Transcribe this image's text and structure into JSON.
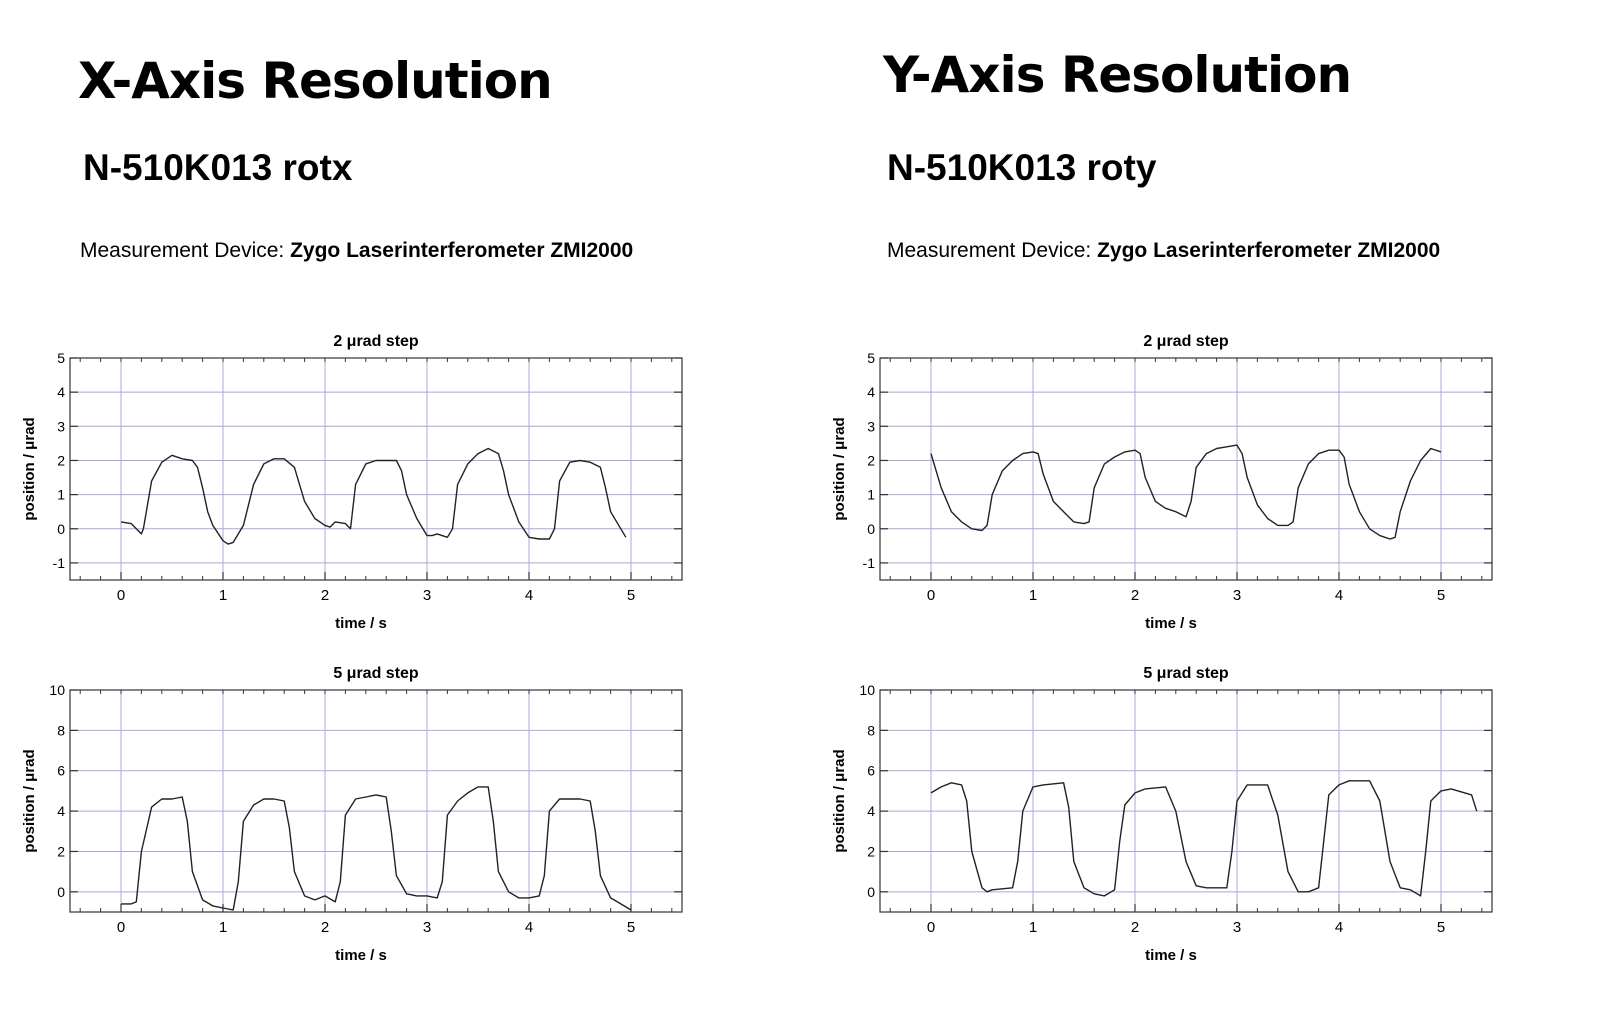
{
  "columns": [
    {
      "title": "X-Axis Resolution",
      "subtitle": "N-510K013 rotx",
      "device_label": "Measurement Device:",
      "device_name": "Zygo Laserinterferometer ZMI2000"
    },
    {
      "title": "Y-Axis Resolution",
      "subtitle": "N-510K013 roty",
      "device_label": "Measurement Device:",
      "device_name": "Zygo Laserinterferometer ZMI2000"
    }
  ],
  "colors": {
    "grid": "#a8a8d8",
    "trace": "#222222",
    "frame": "#333333"
  },
  "chart_data": [
    {
      "type": "line",
      "title": "2 μrad step",
      "xlabel": "time  / s",
      "ylabel": "position  / μrad",
      "xlim": [
        -0.5,
        5.5
      ],
      "ylim": [
        -1.5,
        5
      ],
      "xticks": [
        0,
        1,
        2,
        3,
        4,
        5
      ],
      "yticks": [
        -1,
        0,
        1,
        2,
        3,
        4,
        5
      ],
      "grid": true,
      "series": [
        {
          "x": [
            0,
            0.1,
            0.2,
            0.22,
            0.3,
            0.4,
            0.5,
            0.6,
            0.7,
            0.75,
            0.8,
            0.85,
            0.9,
            1.0,
            1.05,
            1.1,
            1.2,
            1.3,
            1.4,
            1.5,
            1.6,
            1.7,
            1.75,
            1.8,
            1.9,
            2.0,
            2.05,
            2.1,
            2.2,
            2.25,
            2.3,
            2.4,
            2.5,
            2.6,
            2.7,
            2.75,
            2.8,
            2.9,
            3.0,
            3.05,
            3.1,
            3.2,
            3.25,
            3.3,
            3.4,
            3.5,
            3.6,
            3.7,
            3.75,
            3.8,
            3.9,
            4.0,
            4.1,
            4.2,
            4.25,
            4.3,
            4.4,
            4.5,
            4.6,
            4.7,
            4.75,
            4.8,
            4.9,
            4.95
          ],
          "y": [
            0.2,
            0.15,
            -0.15,
            0.0,
            1.4,
            1.95,
            2.15,
            2.05,
            2.0,
            1.8,
            1.2,
            0.5,
            0.1,
            -0.35,
            -0.45,
            -0.4,
            0.1,
            1.3,
            1.9,
            2.05,
            2.05,
            1.8,
            1.3,
            0.8,
            0.3,
            0.1,
            0.05,
            0.2,
            0.15,
            0.0,
            1.3,
            1.9,
            2.0,
            2.0,
            2.0,
            1.7,
            1.0,
            0.3,
            -0.2,
            -0.2,
            -0.15,
            -0.25,
            0.0,
            1.3,
            1.9,
            2.2,
            2.35,
            2.2,
            1.7,
            1.0,
            0.2,
            -0.25,
            -0.3,
            -0.3,
            0.0,
            1.4,
            1.95,
            2.0,
            1.95,
            1.8,
            1.2,
            0.5,
            0.0,
            -0.25
          ]
        }
      ]
    },
    {
      "type": "line",
      "title": "5 μrad step",
      "xlabel": "time  / s",
      "ylabel": "position  / μrad",
      "xlim": [
        -0.5,
        5.5
      ],
      "ylim": [
        -1,
        10
      ],
      "xticks": [
        0,
        1,
        2,
        3,
        4,
        5
      ],
      "yticks": [
        0,
        2,
        4,
        6,
        8,
        10
      ],
      "grid": true,
      "series": [
        {
          "x": [
            0,
            0.1,
            0.15,
            0.2,
            0.3,
            0.4,
            0.5,
            0.6,
            0.65,
            0.7,
            0.8,
            0.9,
            1.0,
            1.1,
            1.15,
            1.2,
            1.3,
            1.4,
            1.5,
            1.6,
            1.65,
            1.7,
            1.8,
            1.9,
            2.0,
            2.1,
            2.15,
            2.2,
            2.3,
            2.4,
            2.5,
            2.6,
            2.65,
            2.7,
            2.8,
            2.9,
            3.0,
            3.1,
            3.15,
            3.2,
            3.3,
            3.4,
            3.5,
            3.6,
            3.65,
            3.7,
            3.8,
            3.9,
            4.0,
            4.1,
            4.15,
            4.2,
            4.3,
            4.4,
            4.5,
            4.6,
            4.65,
            4.7,
            4.8,
            4.9,
            5.0
          ],
          "y": [
            -0.6,
            -0.6,
            -0.5,
            2.0,
            4.2,
            4.6,
            4.6,
            4.7,
            3.5,
            1.0,
            -0.4,
            -0.7,
            -0.8,
            -0.9,
            0.5,
            3.5,
            4.3,
            4.6,
            4.6,
            4.5,
            3.2,
            1.0,
            -0.2,
            -0.4,
            -0.2,
            -0.5,
            0.5,
            3.8,
            4.6,
            4.7,
            4.8,
            4.7,
            3.0,
            0.8,
            -0.1,
            -0.2,
            -0.2,
            -0.3,
            0.5,
            3.8,
            4.5,
            4.9,
            5.2,
            5.2,
            3.5,
            1.0,
            0.0,
            -0.3,
            -0.3,
            -0.2,
            0.8,
            4.0,
            4.6,
            4.6,
            4.6,
            4.5,
            3.0,
            0.8,
            -0.3,
            -0.6,
            -0.9
          ]
        }
      ]
    },
    {
      "type": "line",
      "title": "2 μrad step",
      "xlabel": "time  / s",
      "ylabel": "position  / μrad",
      "xlim": [
        -0.5,
        5.5
      ],
      "ylim": [
        -1.5,
        5
      ],
      "xticks": [
        0,
        1,
        2,
        3,
        4,
        5
      ],
      "yticks": [
        -1,
        0,
        1,
        2,
        3,
        4,
        5
      ],
      "grid": true,
      "series": [
        {
          "x": [
            0,
            0.1,
            0.2,
            0.3,
            0.4,
            0.5,
            0.55,
            0.6,
            0.7,
            0.8,
            0.9,
            1.0,
            1.05,
            1.1,
            1.2,
            1.3,
            1.4,
            1.5,
            1.55,
            1.6,
            1.7,
            1.8,
            1.9,
            2.0,
            2.05,
            2.1,
            2.2,
            2.3,
            2.4,
            2.5,
            2.55,
            2.6,
            2.7,
            2.8,
            2.9,
            3.0,
            3.05,
            3.1,
            3.2,
            3.3,
            3.4,
            3.5,
            3.55,
            3.6,
            3.7,
            3.8,
            3.9,
            4.0,
            4.05,
            4.1,
            4.2,
            4.3,
            4.4,
            4.5,
            4.55,
            4.6,
            4.7,
            4.8,
            4.9,
            5.0
          ],
          "y": [
            2.2,
            1.2,
            0.5,
            0.2,
            0.0,
            -0.05,
            0.1,
            1.0,
            1.7,
            2.0,
            2.2,
            2.25,
            2.2,
            1.6,
            0.8,
            0.5,
            0.2,
            0.15,
            0.2,
            1.2,
            1.9,
            2.1,
            2.25,
            2.3,
            2.2,
            1.5,
            0.8,
            0.6,
            0.5,
            0.35,
            0.8,
            1.8,
            2.2,
            2.35,
            2.4,
            2.45,
            2.2,
            1.5,
            0.7,
            0.3,
            0.1,
            0.1,
            0.2,
            1.2,
            1.9,
            2.2,
            2.3,
            2.3,
            2.1,
            1.3,
            0.5,
            0.0,
            -0.2,
            -0.3,
            -0.25,
            0.5,
            1.4,
            2.0,
            2.35,
            2.25
          ]
        }
      ]
    },
    {
      "type": "line",
      "title": "5 μrad step",
      "xlabel": "time  / s",
      "ylabel": "position  / μrad",
      "xlim": [
        -0.5,
        5.5
      ],
      "ylim": [
        -1,
        10
      ],
      "xticks": [
        0,
        1,
        2,
        3,
        4,
        5
      ],
      "yticks": [
        0,
        2,
        4,
        6,
        8,
        10
      ],
      "grid": true,
      "series": [
        {
          "x": [
            0,
            0.1,
            0.2,
            0.3,
            0.35,
            0.4,
            0.5,
            0.55,
            0.6,
            0.8,
            0.85,
            0.9,
            1.0,
            1.1,
            1.3,
            1.35,
            1.4,
            1.5,
            1.6,
            1.7,
            1.8,
            1.85,
            1.9,
            2.0,
            2.1,
            2.3,
            2.4,
            2.5,
            2.6,
            2.7,
            2.8,
            2.9,
            2.95,
            3.0,
            3.1,
            3.2,
            3.3,
            3.4,
            3.5,
            3.6,
            3.7,
            3.8,
            3.85,
            3.9,
            4.0,
            4.1,
            4.3,
            4.4,
            4.5,
            4.6,
            4.7,
            4.8,
            4.85,
            4.9,
            5.0,
            5.1,
            5.3,
            5.35
          ],
          "y": [
            4.9,
            5.2,
            5.4,
            5.3,
            4.5,
            2.0,
            0.2,
            0.0,
            0.1,
            0.2,
            1.5,
            4.0,
            5.2,
            5.3,
            5.4,
            4.2,
            1.5,
            0.2,
            -0.1,
            -0.2,
            0.1,
            2.5,
            4.3,
            4.9,
            5.1,
            5.2,
            4.0,
            1.5,
            0.3,
            0.2,
            0.2,
            0.2,
            2.0,
            4.5,
            5.3,
            5.3,
            5.3,
            3.8,
            1.0,
            0.0,
            0.0,
            0.2,
            2.5,
            4.8,
            5.3,
            5.5,
            5.5,
            4.5,
            1.5,
            0.2,
            0.1,
            -0.2,
            2.0,
            4.5,
            5.0,
            5.1,
            4.8,
            4.0
          ]
        }
      ]
    }
  ]
}
